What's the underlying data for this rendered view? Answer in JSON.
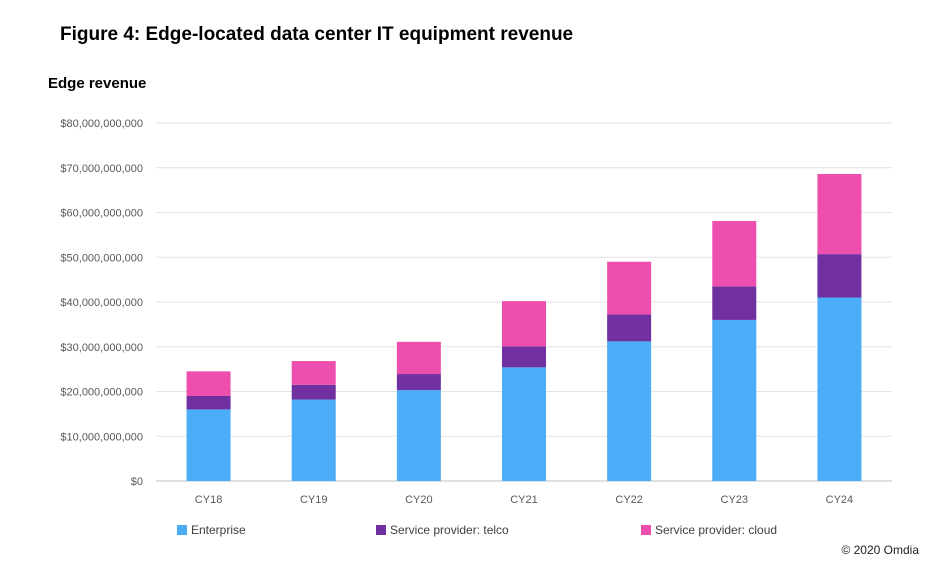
{
  "figure": {
    "title": "Figure 4: Edge-located data center IT equipment revenue",
    "copyright": "© 2020 Omdia"
  },
  "chart_data": {
    "type": "bar",
    "stacked": true,
    "title": "Figure 4: Edge-located data center IT equipment revenue",
    "ylabel": "Edge revenue",
    "xlabel": "",
    "categories": [
      "CY18",
      "CY19",
      "CY20",
      "CY21",
      "CY22",
      "CY23",
      "CY24"
    ],
    "ylim": [
      0,
      80000000000
    ],
    "yticks": [
      0,
      10000000000,
      20000000000,
      30000000000,
      40000000000,
      50000000000,
      60000000000,
      70000000000,
      80000000000
    ],
    "ytick_labels": [
      "$0",
      "$10,000,000,000",
      "$20,000,000,000",
      "$30,000,000,000",
      "$40,000,000,000",
      "$50,000,000,000",
      "$60,000,000,000",
      "$70,000,000,000",
      "$80,000,000,000"
    ],
    "grid": true,
    "legend_position": "bottom",
    "series": [
      {
        "name": "Enterprise",
        "color": "#4BACF7",
        "values": [
          16000000000,
          18200000000,
          20300000000,
          25400000000,
          31200000000,
          36000000000,
          41000000000
        ]
      },
      {
        "name": "Service provider: telco",
        "color": "#7030A0",
        "values": [
          3000000000,
          3300000000,
          3600000000,
          4700000000,
          6000000000,
          7500000000,
          9700000000
        ]
      },
      {
        "name": "Service provider: cloud",
        "color": "#EE4FAE",
        "values": [
          5500000000,
          5300000000,
          7200000000,
          10100000000,
          11800000000,
          14600000000,
          17900000000
        ]
      }
    ]
  }
}
